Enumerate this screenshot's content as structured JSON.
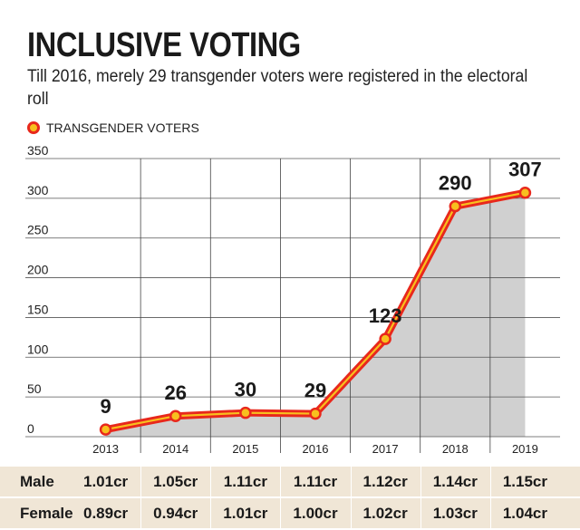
{
  "header": {
    "title": "INCLUSIVE VOTING",
    "subtitle": "Till 2016, merely 29 transgender voters were registered in the electoral roll",
    "legend_label": "TRANSGENDER VOTERS"
  },
  "chart_data": {
    "type": "area",
    "title": "INCLUSIVE VOTING",
    "subtitle": "Till 2016, merely 29 transgender voters were registered in the electoral roll",
    "xlabel": "",
    "ylabel": "",
    "categories": [
      "2013",
      "2014",
      "2015",
      "2016",
      "2017",
      "2018",
      "2019"
    ],
    "series": [
      {
        "name": "TRANSGENDER VOTERS",
        "values": [
          9,
          26,
          30,
          29,
          123,
          290,
          307
        ]
      }
    ],
    "data_labels": [
      "9",
      "26",
      "30",
      "29",
      "123",
      "290",
      "307"
    ],
    "yticks": [
      "0",
      "50",
      "100",
      "150",
      "200",
      "250",
      "300",
      "350"
    ],
    "ylim": [
      0,
      350
    ],
    "grid": "horizontal and vertical",
    "legend": "top-left",
    "colors": {
      "line": "#e8281c",
      "line_highlight": "#f8c01e",
      "fill": "#d0d0d0",
      "table_bg": "#f0e6d6"
    }
  },
  "table": {
    "rows": [
      {
        "label": "Male",
        "values": [
          "1.01cr",
          "1.05cr",
          "1.11cr",
          "1.11cr",
          "1.12cr",
          "1.14cr",
          "1.15cr"
        ]
      },
      {
        "label": "Female",
        "values": [
          "0.89cr",
          "0.94cr",
          "1.01cr",
          "1.00cr",
          "1.02cr",
          "1.03cr",
          "1.04cr"
        ]
      }
    ]
  }
}
